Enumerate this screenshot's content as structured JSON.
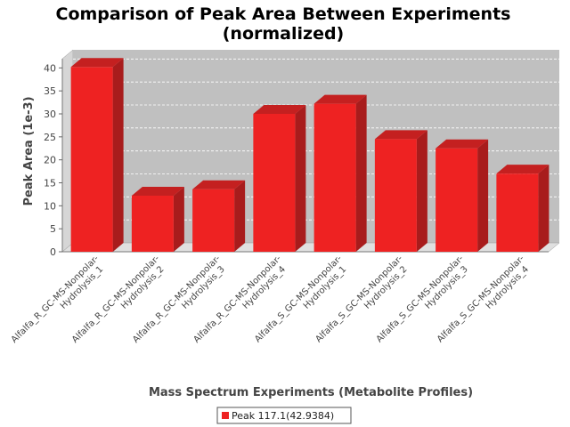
{
  "chart_data": {
    "type": "bar",
    "title_lines": [
      "Comparison of Peak Area Between Experiments",
      "(normalized)"
    ],
    "xlabel": "Mass Spectrum Experiments (Metabolite Profiles)",
    "ylabel": "Peak Area (1e-3)",
    "ylim": [
      0,
      42
    ],
    "yticks": [
      0,
      5,
      10,
      15,
      20,
      25,
      30,
      35,
      40
    ],
    "grid": true,
    "legend_position": "bottom",
    "categories": [
      [
        "Alfalfa_R_GC-MS-Nonpolar-",
        "Hydrolysis_1"
      ],
      [
        "Alfalfa_R_GC-MS-Nonpolar-",
        "Hydrolysis_2"
      ],
      [
        "Alfalfa_R_GC-MS-Nonpolar-",
        "Hydrolysis_3"
      ],
      [
        "Alfalfa_R_GC-MS-Nonpolar-",
        "Hydrolysis_4"
      ],
      [
        "Alfalfa_S_GC-MS-Nonpolar-",
        "Hydrolysis_1"
      ],
      [
        "Alfalfa_S_GC-MS-Nonpolar-",
        "Hydrolysis_2"
      ],
      [
        "Alfalfa_S_GC-MS-Nonpolar-",
        "Hydrolysis_3"
      ],
      [
        "Alfalfa_S_GC-MS-Nonpolar-",
        "Hydrolysis_4"
      ]
    ],
    "series": [
      {
        "name": "Peak 117.1(42.9384)",
        "color": "#ee2222",
        "values": [
          40.2,
          12.2,
          13.6,
          30.0,
          32.2,
          24.5,
          22.5,
          17.0
        ]
      }
    ]
  }
}
